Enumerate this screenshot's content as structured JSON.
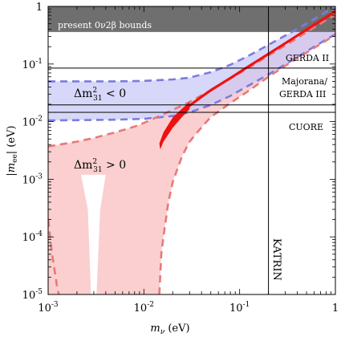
{
  "chart_data": {
    "type": "line",
    "xlabel": "m_ν (eV)",
    "ylabel": "|m_ee| (eV)",
    "xscale": "log",
    "yscale": "log",
    "xlim": [
      0.001,
      1
    ],
    "ylim": [
      1e-05,
      1
    ],
    "x_ticks": [
      0.001,
      0.01,
      0.1,
      1
    ],
    "x_tick_labels": [
      "10^-3",
      "10^-2",
      "10^-1",
      "1"
    ],
    "y_ticks": [
      1e-05,
      0.0001,
      0.001,
      0.01,
      0.1,
      1
    ],
    "y_tick_labels": [
      "10^-5",
      "10^-4",
      "10^-3",
      "10^-2",
      "10^-1",
      "1"
    ],
    "grid": false,
    "colors": {
      "inverted_fill": "#c9c9f7",
      "inverted_dash": "#7b7bdf",
      "normal_fill": "#fbcfcf",
      "normal_dash": "#e87979",
      "measured_band": "#ee1111",
      "bounds_fill": "#6f6f6f"
    },
    "bounds_region": {
      "label": "present 0ν2β bounds",
      "y_from": 0.36,
      "y_to": 1
    },
    "horizontal_lines": [
      {
        "y": 0.085,
        "label": "GERDA II"
      },
      {
        "y": 0.0195,
        "label": "Majorana/ GERDA III"
      },
      {
        "y": 0.0145,
        "label": "CUORE"
      }
    ],
    "vertical_lines": [
      {
        "x": 0.2,
        "label": "KATRIN"
      }
    ],
    "region_labels": {
      "inverted": "Δm²₃₁ < 0",
      "normal": "Δm²₃₁ > 0"
    },
    "series": [
      {
        "legend": "Δm²₃₁ < 0 upper",
        "style": "dashed",
        "x": [
          0.001,
          0.005,
          0.01,
          0.02,
          0.03,
          0.05,
          0.08,
          0.12,
          0.2,
          0.35,
          0.6,
          1.0
        ],
        "y": [
          0.05,
          0.05,
          0.051,
          0.054,
          0.058,
          0.072,
          0.097,
          0.135,
          0.215,
          0.36,
          0.6,
          1.0
        ]
      },
      {
        "legend": "Δm²₃₁ < 0 lower",
        "style": "dashed",
        "x": [
          0.001,
          0.005,
          0.01,
          0.02,
          0.03,
          0.05,
          0.08,
          0.12,
          0.2,
          0.35,
          0.6,
          1.0
        ],
        "y": [
          0.0105,
          0.0108,
          0.0112,
          0.0125,
          0.0145,
          0.0195,
          0.028,
          0.041,
          0.066,
          0.115,
          0.2,
          0.33
        ]
      },
      {
        "legend": "Δm²₃₁ > 0 upper",
        "style": "dashed",
        "x": [
          0.001,
          0.002,
          0.003,
          0.005,
          0.008,
          0.01,
          0.015,
          0.02,
          0.03,
          0.05,
          0.08,
          0.12,
          0.2,
          0.35,
          0.6,
          1.0
        ],
        "y": [
          0.0037,
          0.0045,
          0.0052,
          0.0065,
          0.0082,
          0.0095,
          0.0128,
          0.016,
          0.022,
          0.035,
          0.056,
          0.083,
          0.14,
          0.245,
          0.43,
          0.72
        ]
      },
      {
        "legend": "Δm²₃₁ > 0 lower",
        "style": "dashed",
        "x": [
          0.0145,
          0.0152,
          0.016,
          0.018,
          0.02,
          0.025,
          0.03,
          0.04,
          0.05,
          0.08,
          0.12,
          0.2,
          0.35,
          0.6,
          1.0
        ],
        "y": [
          1e-05,
          5e-05,
          0.0001,
          0.0004,
          0.0009,
          0.0025,
          0.0045,
          0.008,
          0.012,
          0.021,
          0.033,
          0.06,
          0.11,
          0.19,
          0.32
        ]
      },
      {
        "legend": "Δm²₃₁ > 0 lower (small m)",
        "style": "dashed",
        "x": [
          0.001,
          0.00105,
          0.0011,
          0.0012,
          0.00125,
          0.0013
        ],
        "y": [
          0.0002,
          0.0001,
          5e-05,
          2e-05,
          1.2e-05,
          1e-05
        ]
      },
      {
        "legend": "Measured band",
        "style": "solid",
        "x": [
          0.016,
          0.018,
          0.02,
          0.025,
          0.03,
          0.04,
          0.05,
          0.08,
          0.12,
          0.2,
          0.35,
          0.6,
          1.0
        ],
        "y": [
          0.0055,
          0.0075,
          0.0095,
          0.014,
          0.019,
          0.027,
          0.035,
          0.057,
          0.088,
          0.15,
          0.27,
          0.48,
          0.82
        ]
      }
    ],
    "normal_fill_notch": {
      "x": [
        0.0026,
        0.0029,
        0.0031,
        0.0034
      ],
      "y": [
        6e-05,
        1e-05,
        1e-05,
        6e-05
      ]
    }
  }
}
